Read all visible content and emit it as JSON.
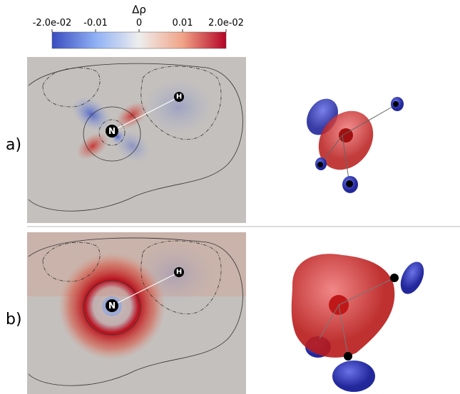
{
  "colorbar": {
    "label": "Δρ",
    "range": [
      -0.02,
      0.02
    ],
    "ticks": [
      {
        "value": -0.02,
        "label": "-2.0e-02"
      },
      {
        "value": -0.01,
        "label": "-0.01"
      },
      0,
      {
        "value": 0.01,
        "label": "0.01"
      },
      {
        "value": 0.02,
        "label": "2.0e-02"
      }
    ]
  },
  "panels": [
    {
      "label": "a)",
      "atoms": [
        "N",
        "H"
      ]
    },
    {
      "label": "b)",
      "atoms": [
        "N",
        "H"
      ]
    }
  ]
}
